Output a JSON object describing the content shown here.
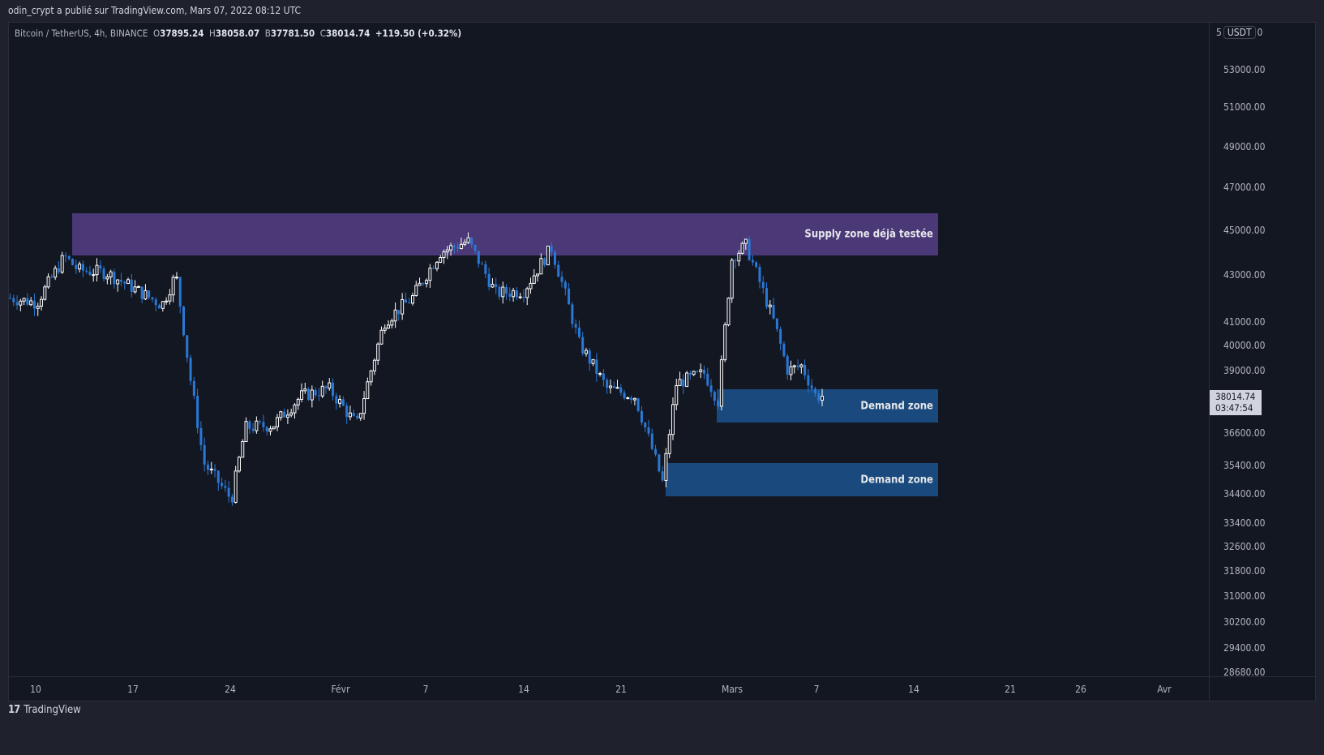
{
  "header": {
    "publish_text": "odin_crypt a publié sur TradingView.com, Mars 07, 2022 08:12 UTC"
  },
  "legend": {
    "symbol": "Bitcoin / TetherUS, 4h, BINANCE",
    "open_label": "O",
    "open": "37895.24",
    "high_label": "H",
    "high": "38058.07",
    "low_label": "B",
    "low": "37781.50",
    "close_label": "C",
    "close": "38014.74",
    "change": "+119.50 (+0.32%)"
  },
  "yaxis": {
    "currency_prefix": "5",
    "currency": "USDT",
    "currency_suffix": "0",
    "ticks": [
      "53000.00",
      "51000.00",
      "49000.00",
      "47000.00",
      "45000.00",
      "43000.00",
      "41000.00",
      "40000.00",
      "39000.00",
      "36600.00",
      "35400.00",
      "34400.00",
      "33400.00",
      "32600.00",
      "31800.00",
      "31000.00",
      "30200.00",
      "29400.00",
      "28680.00"
    ],
    "current_price": "38014.74",
    "countdown": "03:47:54"
  },
  "xaxis": {
    "ticks": [
      "10",
      "17",
      "24",
      "Févr",
      "7",
      "14",
      "21",
      "Mars",
      "7",
      "14",
      "21",
      "26",
      "Avr"
    ]
  },
  "zones": [
    {
      "label": "Supply zone déjà testée",
      "type": "supply",
      "color": "#4a3877"
    },
    {
      "label": "Demand zone",
      "type": "demand",
      "color": "#1a4a7d"
    },
    {
      "label": "Demand zone",
      "type": "demand",
      "color": "#1a4a7d"
    }
  ],
  "footer": {
    "logo_mark": "17",
    "brand": "TradingView"
  },
  "colors": {
    "background": "#131722",
    "up_candle": "#ffffff",
    "down_candle": "#2a78d6",
    "supply_zone": "#4a3877",
    "demand_zone": "#1a4a7d"
  },
  "chart_data": {
    "type": "candlestick",
    "title": "Bitcoin / TetherUS, 4h, BINANCE",
    "xlabel": "",
    "ylabel": "USDT",
    "ylim": [
      28680,
      55000
    ],
    "scale": "log",
    "x_ticks": [
      "10",
      "17",
      "24",
      "Févr",
      "7",
      "14",
      "21",
      "Mars",
      "7",
      "14",
      "21",
      "26",
      "Avr"
    ],
    "y_ticks": [
      53000,
      51000,
      49000,
      47000,
      45000,
      43000,
      41000,
      40000,
      39000,
      36600,
      35400,
      34400,
      33400,
      32600,
      31800,
      31000,
      30200,
      29400,
      28680
    ],
    "last": {
      "open": 37895.24,
      "high": 38058.07,
      "low": 37781.5,
      "close": 38014.74,
      "change": 119.5,
      "change_pct": 0.32
    },
    "annotations": [
      {
        "label": "Supply zone déjà testée",
        "from": "Jan 12",
        "to": "Mar 16",
        "price_low": 43900,
        "price_high": 45900
      },
      {
        "label": "Demand zone",
        "from": "Feb 28",
        "to": "Mar 16",
        "price_low": 36900,
        "price_high": 38200
      },
      {
        "label": "Demand zone",
        "from": "Feb 24",
        "to": "Mar 16",
        "price_low": 34400,
        "price_high": 35600
      }
    ],
    "close_path_approx": [
      {
        "date": "Jan 8",
        "close": 42000
      },
      {
        "date": "Jan 10",
        "close": 41800
      },
      {
        "date": "Jan 12",
        "close": 43800
      },
      {
        "date": "Jan 13",
        "close": 43200
      },
      {
        "date": "Jan 15",
        "close": 43100
      },
      {
        "date": "Jan 17",
        "close": 42400
      },
      {
        "date": "Jan 19",
        "close": 41700
      },
      {
        "date": "Jan 20",
        "close": 43000
      },
      {
        "date": "Jan 21",
        "close": 38800
      },
      {
        "date": "Jan 22",
        "close": 35500
      },
      {
        "date": "Jan 24",
        "close": 34200
      },
      {
        "date": "Jan 25",
        "close": 36800
      },
      {
        "date": "Jan 27",
        "close": 36900
      },
      {
        "date": "Jan 29",
        "close": 38000
      },
      {
        "date": "Jan 31",
        "close": 38300
      },
      {
        "date": "Feb 2",
        "close": 36900
      },
      {
        "date": "Feb 4",
        "close": 41000
      },
      {
        "date": "Feb 6",
        "close": 42000
      },
      {
        "date": "Feb 8",
        "close": 44000
      },
      {
        "date": "Feb 10",
        "close": 44500
      },
      {
        "date": "Feb 12",
        "close": 42200
      },
      {
        "date": "Feb 14",
        "close": 42300
      },
      {
        "date": "Feb 16",
        "close": 44200
      },
      {
        "date": "Feb 18",
        "close": 40100
      },
      {
        "date": "Feb 20",
        "close": 38300
      },
      {
        "date": "Feb 22",
        "close": 38000
      },
      {
        "date": "Feb 24",
        "close": 34800
      },
      {
        "date": "Feb 25",
        "close": 38500
      },
      {
        "date": "Feb 27",
        "close": 38900
      },
      {
        "date": "Feb 28",
        "close": 37800
      },
      {
        "date": "Mar 1",
        "close": 43800
      },
      {
        "date": "Mar 2",
        "close": 44300
      },
      {
        "date": "Mar 4",
        "close": 41000
      },
      {
        "date": "Mar 5",
        "close": 39000
      },
      {
        "date": "Mar 6",
        "close": 39200
      },
      {
        "date": "Mar 7",
        "close": 38014.74
      }
    ]
  }
}
